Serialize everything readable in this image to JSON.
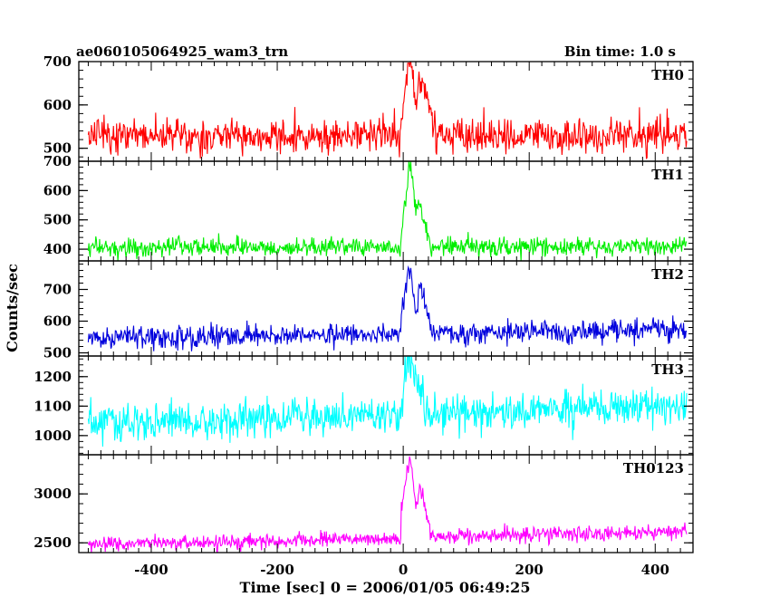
{
  "header": {
    "title": "ae060105064925_wam3_trn",
    "bin_time": "Bin time: 1.0 s"
  },
  "axes": {
    "ylabel": "Counts/sec",
    "xlabel": "Time [sec] 0 = 2006/01/05 06:49:25",
    "xlim": [
      -515,
      460
    ],
    "xticks": [
      -400,
      -200,
      0,
      200,
      400
    ]
  },
  "chart_data": {
    "type": "line",
    "x_range": [
      -500,
      450
    ],
    "bin_seconds": 1.0,
    "series": [
      {
        "name": "TH0",
        "color": "#ff0000",
        "ylim": [
          470,
          700
        ],
        "yticks": [
          500,
          600,
          700
        ],
        "ytick_labels": [
          "500",
          "600",
          "700"
        ],
        "baseline_start": 530,
        "baseline_end": 530,
        "noise_sd": 28,
        "burst": [
          [
            -3,
            575
          ],
          [
            3,
            625
          ],
          [
            8,
            690
          ],
          [
            12,
            700
          ],
          [
            16,
            660
          ],
          [
            20,
            600
          ],
          [
            26,
            640
          ],
          [
            30,
            660
          ],
          [
            36,
            630
          ],
          [
            42,
            580
          ],
          [
            50,
            545
          ]
        ]
      },
      {
        "name": "TH1",
        "color": "#00ee00",
        "ylim": [
          360,
          700
        ],
        "yticks": [
          400,
          500,
          600,
          700
        ],
        "ytick_labels": [
          "400",
          "500",
          "600",
          "700"
        ],
        "baseline_start": 405,
        "baseline_end": 410,
        "noise_sd": 22,
        "burst": [
          [
            -3,
            450
          ],
          [
            3,
            560
          ],
          [
            8,
            650
          ],
          [
            12,
            690
          ],
          [
            16,
            620
          ],
          [
            20,
            530
          ],
          [
            26,
            560
          ],
          [
            30,
            520
          ],
          [
            36,
            470
          ],
          [
            42,
            430
          ]
        ]
      },
      {
        "name": "TH2",
        "color": "#0000dd",
        "ylim": [
          490,
          790
        ],
        "yticks": [
          500,
          600,
          700
        ],
        "ytick_labels": [
          "500",
          "600",
          "700"
        ],
        "baseline_start": 545,
        "baseline_end": 575,
        "noise_sd": 25,
        "burst": [
          [
            -3,
            620
          ],
          [
            3,
            700
          ],
          [
            8,
            770
          ],
          [
            12,
            760
          ],
          [
            16,
            680
          ],
          [
            20,
            600
          ],
          [
            26,
            700
          ],
          [
            30,
            710
          ],
          [
            36,
            640
          ],
          [
            42,
            590
          ]
        ]
      },
      {
        "name": "TH3",
        "color": "#00ffff",
        "ylim": [
          935,
          1270
        ],
        "yticks": [
          1000,
          1100,
          1200
        ],
        "ytick_labels": [
          "1000",
          "1100",
          "1200"
        ],
        "baseline_start": 1040,
        "baseline_end": 1100,
        "noise_sd": 45,
        "burst": [
          [
            0,
            1180
          ],
          [
            6,
            1230
          ],
          [
            10,
            1250
          ],
          [
            16,
            1200
          ],
          [
            24,
            1160
          ],
          [
            32,
            1130
          ]
        ]
      },
      {
        "name": "TH0123",
        "color": "#ff00ff",
        "ylim": [
          2400,
          3400
        ],
        "yticks": [
          2500,
          3000
        ],
        "ytick_labels": [
          "2500",
          "3000"
        ],
        "baseline_start": 2480,
        "baseline_end": 2620,
        "noise_sd": 55,
        "burst": [
          [
            -3,
            2850
          ],
          [
            3,
            3100
          ],
          [
            8,
            3300
          ],
          [
            12,
            3350
          ],
          [
            16,
            3100
          ],
          [
            20,
            2850
          ],
          [
            26,
            3050
          ],
          [
            30,
            3000
          ],
          [
            36,
            2800
          ],
          [
            42,
            2700
          ]
        ]
      }
    ]
  }
}
